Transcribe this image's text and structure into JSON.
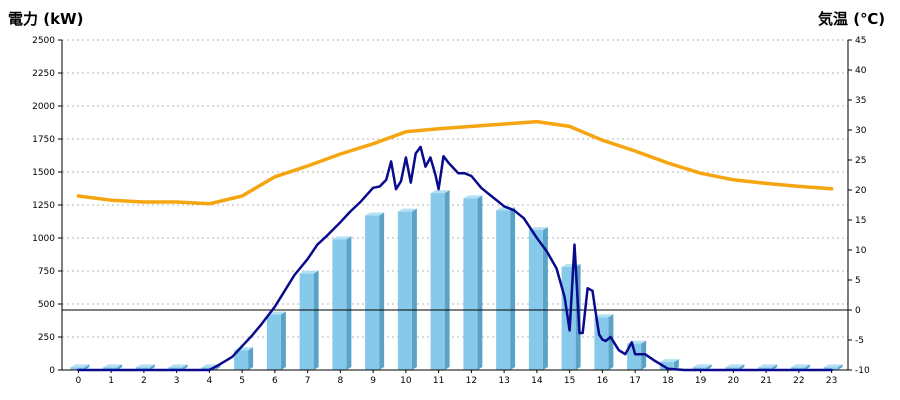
{
  "chart_data": {
    "type": "bar",
    "title": "",
    "ylabel_left": "電力 (kW)",
    "ylabel_right": "気温 (℃)",
    "colors": {
      "left_title": "#1f74b8",
      "right_title": "#ef8a17",
      "bar_front": "#86c9ea",
      "bar_side": "#5aa3c7",
      "bar_top": "#b4e0f5",
      "power_line": "#0a0a8c",
      "temp_line": "#f5a50f"
    },
    "categories": [
      "0",
      "1",
      "2",
      "3",
      "4",
      "5",
      "6",
      "7",
      "8",
      "9",
      "10",
      "11",
      "12",
      "13",
      "14",
      "15",
      "16",
      "17",
      "18",
      "19",
      "20",
      "21",
      "22",
      "23"
    ],
    "ylim_left": [
      0,
      2500
    ],
    "yticks_left": [
      0,
      250,
      500,
      750,
      1000,
      1250,
      1500,
      1750,
      2000,
      2250,
      2500
    ],
    "ylim_right": [
      -10,
      45
    ],
    "yticks_right": [
      -10,
      -5,
      0,
      5,
      10,
      15,
      20,
      25,
      30,
      35,
      40,
      45
    ],
    "grid": true,
    "series": [
      {
        "kind": "bar",
        "axis": "left",
        "values": [
          20,
          20,
          20,
          20,
          20,
          150,
          420,
          730,
          990,
          1170,
          1200,
          1340,
          1300,
          1210,
          1060,
          780,
          400,
          200,
          60,
          20,
          20,
          20,
          20,
          20
        ]
      },
      {
        "kind": "line",
        "axis": "left",
        "x": [
          0,
          1,
          2,
          3,
          4,
          4.3,
          4.7,
          5,
          5.3,
          5.6,
          6,
          6.3,
          6.6,
          7,
          7.3,
          7.6,
          8,
          8.3,
          8.6,
          9,
          9.2,
          9.4,
          9.55,
          9.7,
          9.85,
          10,
          10.15,
          10.3,
          10.45,
          10.6,
          10.75,
          10.9,
          11,
          11.15,
          11.3,
          11.45,
          11.6,
          11.8,
          12,
          12.3,
          12.6,
          12.8,
          13,
          13.3,
          13.6,
          14,
          14.3,
          14.6,
          14.85,
          15,
          15.15,
          15.3,
          15.4,
          15.55,
          15.7,
          15.8,
          15.9,
          16,
          16.1,
          16.25,
          16.5,
          16.7,
          16.9,
          17,
          17.3,
          17.6,
          18,
          18.5,
          19,
          20,
          21,
          22,
          23
        ],
        "values": [
          0,
          0,
          0,
          0,
          0,
          40,
          100,
          180,
          260,
          350,
          480,
          600,
          720,
          840,
          950,
          1020,
          1120,
          1200,
          1270,
          1380,
          1390,
          1440,
          1580,
          1370,
          1430,
          1610,
          1420,
          1640,
          1690,
          1540,
          1610,
          1480,
          1370,
          1620,
          1570,
          1530,
          1490,
          1490,
          1470,
          1380,
          1320,
          1280,
          1240,
          1210,
          1150,
          1000,
          900,
          770,
          550,
          300,
          950,
          280,
          280,
          620,
          600,
          430,
          270,
          230,
          220,
          250,
          150,
          120,
          210,
          120,
          120,
          70,
          10,
          0,
          0,
          0,
          0,
          0,
          0
        ]
      },
      {
        "kind": "line",
        "axis": "right",
        "x": [
          0,
          1,
          2,
          3,
          4,
          5,
          6,
          7,
          8,
          9,
          10,
          11,
          12,
          13,
          14,
          15,
          16,
          17,
          18,
          19,
          20,
          21,
          22,
          23
        ],
        "values": [
          19.0,
          18.3,
          18.0,
          18.0,
          17.7,
          19.0,
          22.2,
          24.0,
          26.0,
          27.7,
          29.7,
          30.2,
          30.6,
          31.0,
          31.4,
          30.6,
          28.3,
          26.5,
          24.5,
          22.8,
          21.7,
          21.1,
          20.6,
          20.2
        ]
      }
    ]
  }
}
